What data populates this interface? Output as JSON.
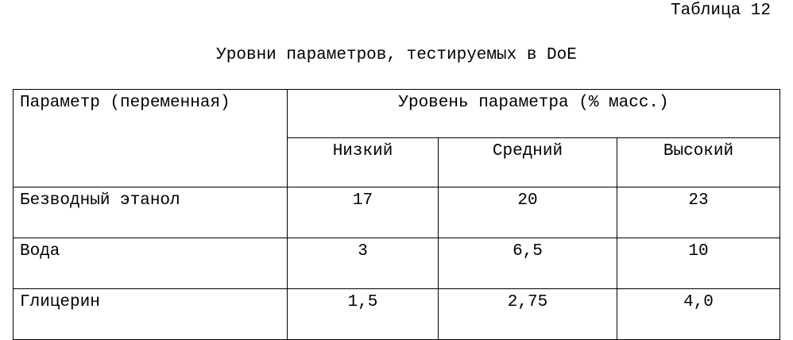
{
  "table_number": "Таблица 12",
  "title": "Уровни параметров, тестируемых в DoE",
  "table": {
    "header_param": "Параметр (переменная)",
    "header_level": "Уровень параметра (% масс.)",
    "levels": [
      "Низкий",
      "Средний",
      "Высокий"
    ],
    "rows": [
      {
        "name": "Безводный этанол",
        "values": [
          "17",
          "20",
          "23"
        ]
      },
      {
        "name": "Вода",
        "values": [
          "3",
          "6,5",
          "10"
        ]
      },
      {
        "name": "Глицерин",
        "values": [
          "1,5",
          "2,75",
          "4,0"
        ]
      }
    ]
  }
}
